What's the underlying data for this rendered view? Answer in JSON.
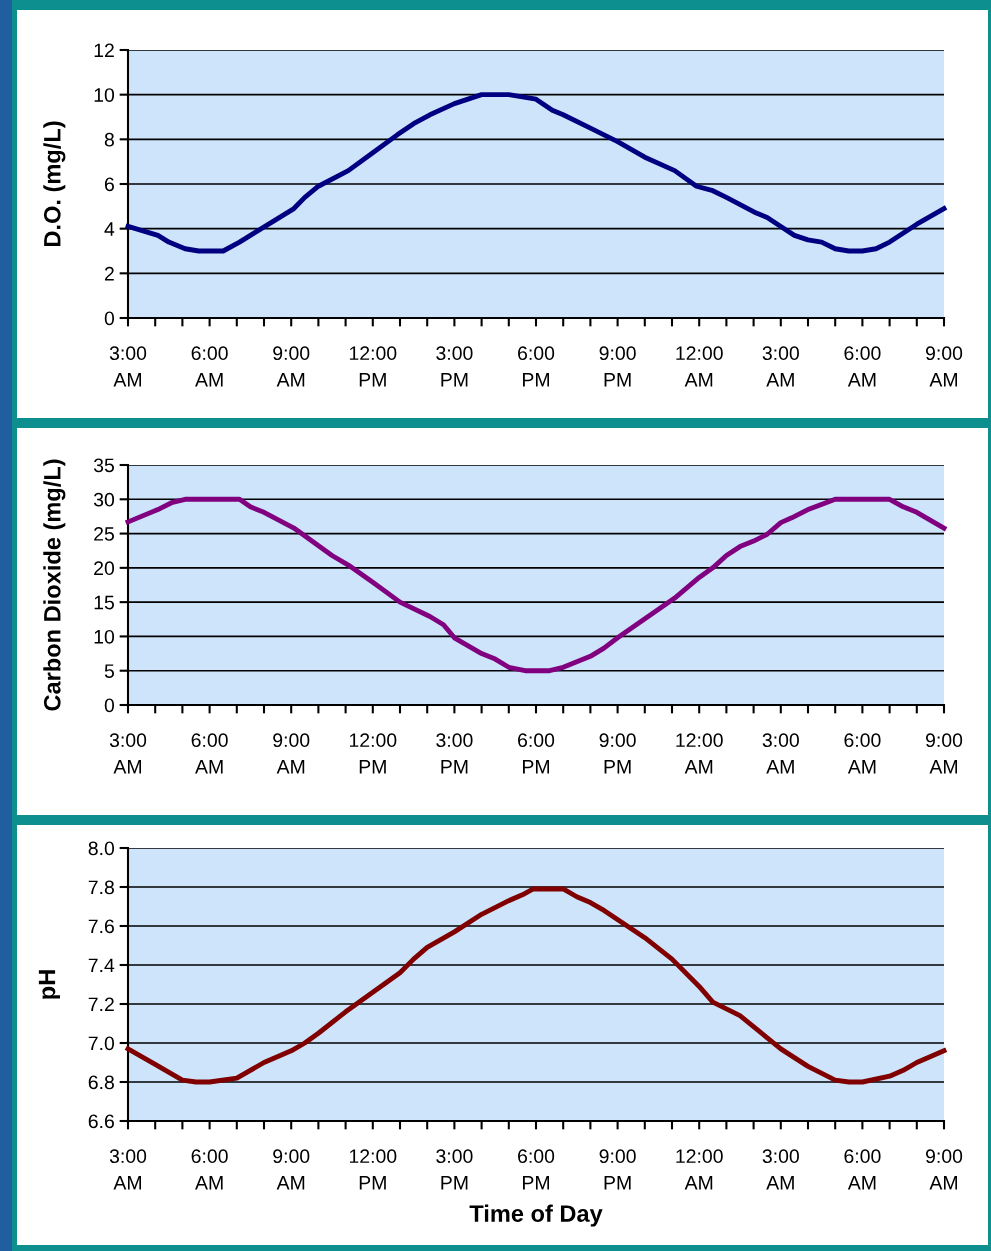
{
  "chart_data": [
    {
      "type": "line",
      "ylabel": "D.O. (mg/L)",
      "xlim": [
        "2000-01-01T03:00",
        "2000-01-02T09:00"
      ],
      "ylim": [
        0,
        12
      ],
      "yticks": [
        0,
        2,
        4,
        6,
        8,
        10,
        12
      ],
      "grid": "y",
      "marker": "none",
      "line_style": "solid",
      "xticks": [
        {
          "value": "2000-01-01T03:00",
          "label": "3:00\nAM"
        },
        {
          "value": "2000-01-01T04:00",
          "label": null
        },
        {
          "value": "2000-01-01T05:00",
          "label": null
        },
        {
          "value": "2000-01-01T06:00",
          "label": "6:00\nAM"
        },
        {
          "value": "2000-01-01T07:00",
          "label": null
        },
        {
          "value": "2000-01-01T08:00",
          "label": null
        },
        {
          "value": "2000-01-01T09:00",
          "label": "9:00\nAM"
        },
        {
          "value": "2000-01-01T10:00",
          "label": null
        },
        {
          "value": "2000-01-01T11:00",
          "label": null
        },
        {
          "value": "2000-01-01T12:00",
          "label": "12:00\nPM"
        },
        {
          "value": "2000-01-01T13:00",
          "label": null
        },
        {
          "value": "2000-01-01T14:00",
          "label": null
        },
        {
          "value": "2000-01-01T15:00",
          "label": "3:00\nPM"
        },
        {
          "value": "2000-01-01T16:00",
          "label": null
        },
        {
          "value": "2000-01-01T17:00",
          "label": null
        },
        {
          "value": "2000-01-01T18:00",
          "label": "6:00\nPM"
        },
        {
          "value": "2000-01-01T19:00",
          "label": null
        },
        {
          "value": "2000-01-01T20:00",
          "label": null
        },
        {
          "value": "2000-01-01T21:00",
          "label": "9:00\nPM"
        },
        {
          "value": "2000-01-01T22:00",
          "label": null
        },
        {
          "value": "2000-01-01T23:00",
          "label": null
        },
        {
          "value": "2000-01-02T00:00",
          "label": "12:00\nAM"
        },
        {
          "value": "2000-01-02T01:00",
          "label": null
        },
        {
          "value": "2000-01-02T02:00",
          "label": null
        },
        {
          "value": "2000-01-02T03:00",
          "label": "3:00\nAM"
        },
        {
          "value": "2000-01-02T04:00",
          "label": null
        },
        {
          "value": "2000-01-02T05:00",
          "label": null
        },
        {
          "value": "2000-01-02T06:00",
          "label": "6:00\nAM"
        },
        {
          "value": "2000-01-02T07:00",
          "label": null
        },
        {
          "value": "2000-01-02T08:00",
          "label": null
        },
        {
          "value": "2000-01-02T09:00",
          "label": "9:00\nAM"
        }
      ],
      "series": [
        {
          "color": "#000080",
          "x": [
            "2000-01-01T03:00",
            "2000-01-01T04:06",
            "2000-01-01T04:30",
            "2000-01-01T05:06",
            "2000-01-01T05:36",
            "2000-01-01T06:30",
            "2000-01-01T07:06",
            "2000-01-01T07:30",
            "2000-01-01T09:06",
            "2000-01-01T09:30",
            "2000-01-01T10:00",
            "2000-01-01T11:06",
            "2000-01-01T12:00",
            "2000-01-01T12:54",
            "2000-01-01T13:30",
            "2000-01-01T14:06",
            "2000-01-01T15:00",
            "2000-01-01T16:00",
            "2000-01-01T17:00",
            "2000-01-01T18:00",
            "2000-01-01T18:36",
            "2000-01-01T19:00",
            "2000-01-01T20:00",
            "2000-01-01T21:00",
            "2000-01-01T22:00",
            "2000-01-01T23:06",
            "2000-01-01T23:54",
            "2000-01-02T00:30",
            "2000-01-02T01:00",
            "2000-01-02T02:06",
            "2000-01-02T02:30",
            "2000-01-02T03:00",
            "2000-01-02T03:30",
            "2000-01-02T04:00",
            "2000-01-02T04:30",
            "2000-01-02T05:00",
            "2000-01-02T05:30",
            "2000-01-02T06:00",
            "2000-01-02T06:30",
            "2000-01-02T07:00",
            "2000-01-02T08:00",
            "2000-01-02T09:00"
          ],
          "values": [
            4.1,
            3.7,
            3.4,
            3.1,
            3.0,
            3.0,
            3.4,
            3.7,
            4.9,
            5.4,
            5.9,
            6.6,
            7.4,
            8.2,
            8.7,
            9.1,
            9.6,
            10.0,
            10.0,
            9.8,
            9.3,
            9.1,
            8.5,
            7.9,
            7.2,
            6.6,
            5.9,
            5.7,
            5.4,
            4.7,
            4.5,
            4.1,
            3.7,
            3.5,
            3.4,
            3.1,
            3.0,
            3.0,
            3.1,
            3.4,
            4.2,
            4.9
          ]
        }
      ]
    },
    {
      "type": "line",
      "ylabel": "Carbon Dioxide (mg/L)",
      "xlim": [
        "2000-01-01T03:00",
        "2000-01-02T09:00"
      ],
      "ylim": [
        0,
        35
      ],
      "yticks": [
        0,
        5,
        10,
        15,
        20,
        25,
        30,
        35
      ],
      "grid": "y",
      "marker": "none",
      "line_style": "solid",
      "xticks": [
        {
          "value": "2000-01-01T03:00",
          "label": "3:00\nAM"
        },
        {
          "value": "2000-01-01T04:00",
          "label": null
        },
        {
          "value": "2000-01-01T05:00",
          "label": null
        },
        {
          "value": "2000-01-01T06:00",
          "label": "6:00\nAM"
        },
        {
          "value": "2000-01-01T07:00",
          "label": null
        },
        {
          "value": "2000-01-01T08:00",
          "label": null
        },
        {
          "value": "2000-01-01T09:00",
          "label": "9:00\nAM"
        },
        {
          "value": "2000-01-01T10:00",
          "label": null
        },
        {
          "value": "2000-01-01T11:00",
          "label": null
        },
        {
          "value": "2000-01-01T12:00",
          "label": "12:00\nPM"
        },
        {
          "value": "2000-01-01T13:00",
          "label": null
        },
        {
          "value": "2000-01-01T14:00",
          "label": null
        },
        {
          "value": "2000-01-01T15:00",
          "label": "3:00\nPM"
        },
        {
          "value": "2000-01-01T16:00",
          "label": null
        },
        {
          "value": "2000-01-01T17:00",
          "label": null
        },
        {
          "value": "2000-01-01T18:00",
          "label": "6:00\nPM"
        },
        {
          "value": "2000-01-01T19:00",
          "label": null
        },
        {
          "value": "2000-01-01T20:00",
          "label": null
        },
        {
          "value": "2000-01-01T21:00",
          "label": "9:00\nPM"
        },
        {
          "value": "2000-01-01T22:00",
          "label": null
        },
        {
          "value": "2000-01-01T23:00",
          "label": null
        },
        {
          "value": "2000-01-02T00:00",
          "label": "12:00\nAM"
        },
        {
          "value": "2000-01-02T01:00",
          "label": null
        },
        {
          "value": "2000-01-02T02:00",
          "label": null
        },
        {
          "value": "2000-01-02T03:00",
          "label": "3:00\nAM"
        },
        {
          "value": "2000-01-02T04:00",
          "label": null
        },
        {
          "value": "2000-01-02T05:00",
          "label": null
        },
        {
          "value": "2000-01-02T06:00",
          "label": "6:00\nAM"
        },
        {
          "value": "2000-01-02T07:00",
          "label": null
        },
        {
          "value": "2000-01-02T08:00",
          "label": null
        },
        {
          "value": "2000-01-02T09:00",
          "label": "9:00\nAM"
        }
      ],
      "series": [
        {
          "color": "#800080",
          "x": [
            "2000-01-01T03:00",
            "2000-01-01T04:06",
            "2000-01-01T04:36",
            "2000-01-01T05:06",
            "2000-01-01T07:06",
            "2000-01-01T07:30",
            "2000-01-01T08:00",
            "2000-01-01T09:06",
            "2000-01-01T10:30",
            "2000-01-01T11:06",
            "2000-01-01T12:00",
            "2000-01-01T13:00",
            "2000-01-01T14:06",
            "2000-01-01T14:36",
            "2000-01-01T15:00",
            "2000-01-01T16:00",
            "2000-01-01T16:30",
            "2000-01-01T17:00",
            "2000-01-01T17:36",
            "2000-01-01T18:30",
            "2000-01-01T19:00",
            "2000-01-01T20:00",
            "2000-01-01T20:30",
            "2000-01-01T21:00",
            "2000-01-01T23:06",
            "2000-01-02T00:00",
            "2000-01-02T00:30",
            "2000-01-02T01:00",
            "2000-01-02T01:30",
            "2000-01-02T02:00",
            "2000-01-02T02:30",
            "2000-01-02T03:00",
            "2000-01-02T03:24",
            "2000-01-02T04:00",
            "2000-01-02T05:00",
            "2000-01-02T07:00",
            "2000-01-02T07:30",
            "2000-01-02T08:00",
            "2000-01-02T09:00"
          ],
          "values": [
            26.7,
            28.5,
            29.5,
            30,
            30,
            28.9,
            28.1,
            25.8,
            21.8,
            20.4,
            17.9,
            15,
            12.9,
            11.7,
            9.8,
            7.5,
            6.7,
            5.5,
            5,
            5,
            5.5,
            7.1,
            8.3,
            9.8,
            15.6,
            18.6,
            20,
            21.8,
            23.1,
            23.9,
            24.9,
            26.6,
            27.3,
            28.5,
            30,
            30,
            28.9,
            28.1,
            25.8
          ]
        }
      ]
    },
    {
      "type": "line",
      "ylabel": "pH",
      "xlabel": "Time of Day",
      "xlim": [
        "2000-01-01T03:00",
        "2000-01-02T09:00"
      ],
      "ylim": [
        6.6,
        8.0
      ],
      "yticks": [
        {
          "value": 6.6,
          "label": "6.6"
        },
        {
          "value": 6.8,
          "label": "6.8"
        },
        {
          "value": 7.0,
          "label": "7.0"
        },
        {
          "value": 7.2,
          "label": "7.2"
        },
        {
          "value": 7.4,
          "label": "7.4"
        },
        {
          "value": 7.6,
          "label": "7.6"
        },
        {
          "value": 7.8,
          "label": "7.8"
        },
        {
          "value": 8.0,
          "label": "8.0"
        }
      ],
      "grid": "y",
      "marker": "none",
      "line_style": "solid",
      "xticks": [
        {
          "value": "2000-01-01T03:00",
          "label": "3:00\nAM"
        },
        {
          "value": "2000-01-01T04:00",
          "label": null
        },
        {
          "value": "2000-01-01T05:00",
          "label": null
        },
        {
          "value": "2000-01-01T06:00",
          "label": "6:00\nAM"
        },
        {
          "value": "2000-01-01T07:00",
          "label": null
        },
        {
          "value": "2000-01-01T08:00",
          "label": null
        },
        {
          "value": "2000-01-01T09:00",
          "label": "9:00\nAM"
        },
        {
          "value": "2000-01-01T10:00",
          "label": null
        },
        {
          "value": "2000-01-01T11:00",
          "label": null
        },
        {
          "value": "2000-01-01T12:00",
          "label": "12:00\nPM"
        },
        {
          "value": "2000-01-01T13:00",
          "label": null
        },
        {
          "value": "2000-01-01T14:00",
          "label": null
        },
        {
          "value": "2000-01-01T15:00",
          "label": "3:00\nPM"
        },
        {
          "value": "2000-01-01T16:00",
          "label": null
        },
        {
          "value": "2000-01-01T17:00",
          "label": null
        },
        {
          "value": "2000-01-01T18:00",
          "label": "6:00\nPM"
        },
        {
          "value": "2000-01-01T19:00",
          "label": null
        },
        {
          "value": "2000-01-01T20:00",
          "label": null
        },
        {
          "value": "2000-01-01T21:00",
          "label": "9:00\nPM"
        },
        {
          "value": "2000-01-01T22:00",
          "label": null
        },
        {
          "value": "2000-01-01T23:00",
          "label": null
        },
        {
          "value": "2000-01-02T00:00",
          "label": "12:00\nAM"
        },
        {
          "value": "2000-01-02T01:00",
          "label": null
        },
        {
          "value": "2000-01-02T02:00",
          "label": null
        },
        {
          "value": "2000-01-02T03:00",
          "label": "3:00\nAM"
        },
        {
          "value": "2000-01-02T04:00",
          "label": null
        },
        {
          "value": "2000-01-02T05:00",
          "label": null
        },
        {
          "value": "2000-01-02T06:00",
          "label": "6:00\nAM"
        },
        {
          "value": "2000-01-02T07:00",
          "label": null
        },
        {
          "value": "2000-01-02T08:00",
          "label": null
        },
        {
          "value": "2000-01-02T09:00",
          "label": "9:00\nAM"
        }
      ],
      "series": [
        {
          "color": "#800000",
          "x": [
            "2000-01-01T03:00",
            "2000-01-01T04:00",
            "2000-01-01T05:00",
            "2000-01-01T05:30",
            "2000-01-01T06:00",
            "2000-01-01T07:00",
            "2000-01-01T08:00",
            "2000-01-01T09:00",
            "2000-01-01T09:30",
            "2000-01-01T10:00",
            "2000-01-01T11:00",
            "2000-01-01T12:00",
            "2000-01-01T13:00",
            "2000-01-01T13:30",
            "2000-01-01T14:00",
            "2000-01-01T15:00",
            "2000-01-01T16:00",
            "2000-01-01T17:00",
            "2000-01-01T17:30",
            "2000-01-01T17:54",
            "2000-01-01T19:00",
            "2000-01-01T19:30",
            "2000-01-01T20:00",
            "2000-01-01T20:30",
            "2000-01-01T22:00",
            "2000-01-01T23:00",
            "2000-01-02T00:00",
            "2000-01-02T00:30",
            "2000-01-02T01:30",
            "2000-01-02T03:00",
            "2000-01-02T04:00",
            "2000-01-02T05:00",
            "2000-01-02T05:30",
            "2000-01-02T06:00",
            "2000-01-02T07:00",
            "2000-01-02T07:30",
            "2000-01-02T08:00",
            "2000-01-02T09:00"
          ],
          "values": [
            6.97,
            6.89,
            6.81,
            6.8,
            6.8,
            6.82,
            6.9,
            6.96,
            7.0,
            7.05,
            7.16,
            7.26,
            7.36,
            7.43,
            7.49,
            7.57,
            7.66,
            7.73,
            7.76,
            7.79,
            7.79,
            7.75,
            7.72,
            7.68,
            7.54,
            7.43,
            7.29,
            7.21,
            7.14,
            6.97,
            6.88,
            6.81,
            6.8,
            6.8,
            6.83,
            6.86,
            6.9,
            6.96
          ]
        }
      ]
    }
  ]
}
